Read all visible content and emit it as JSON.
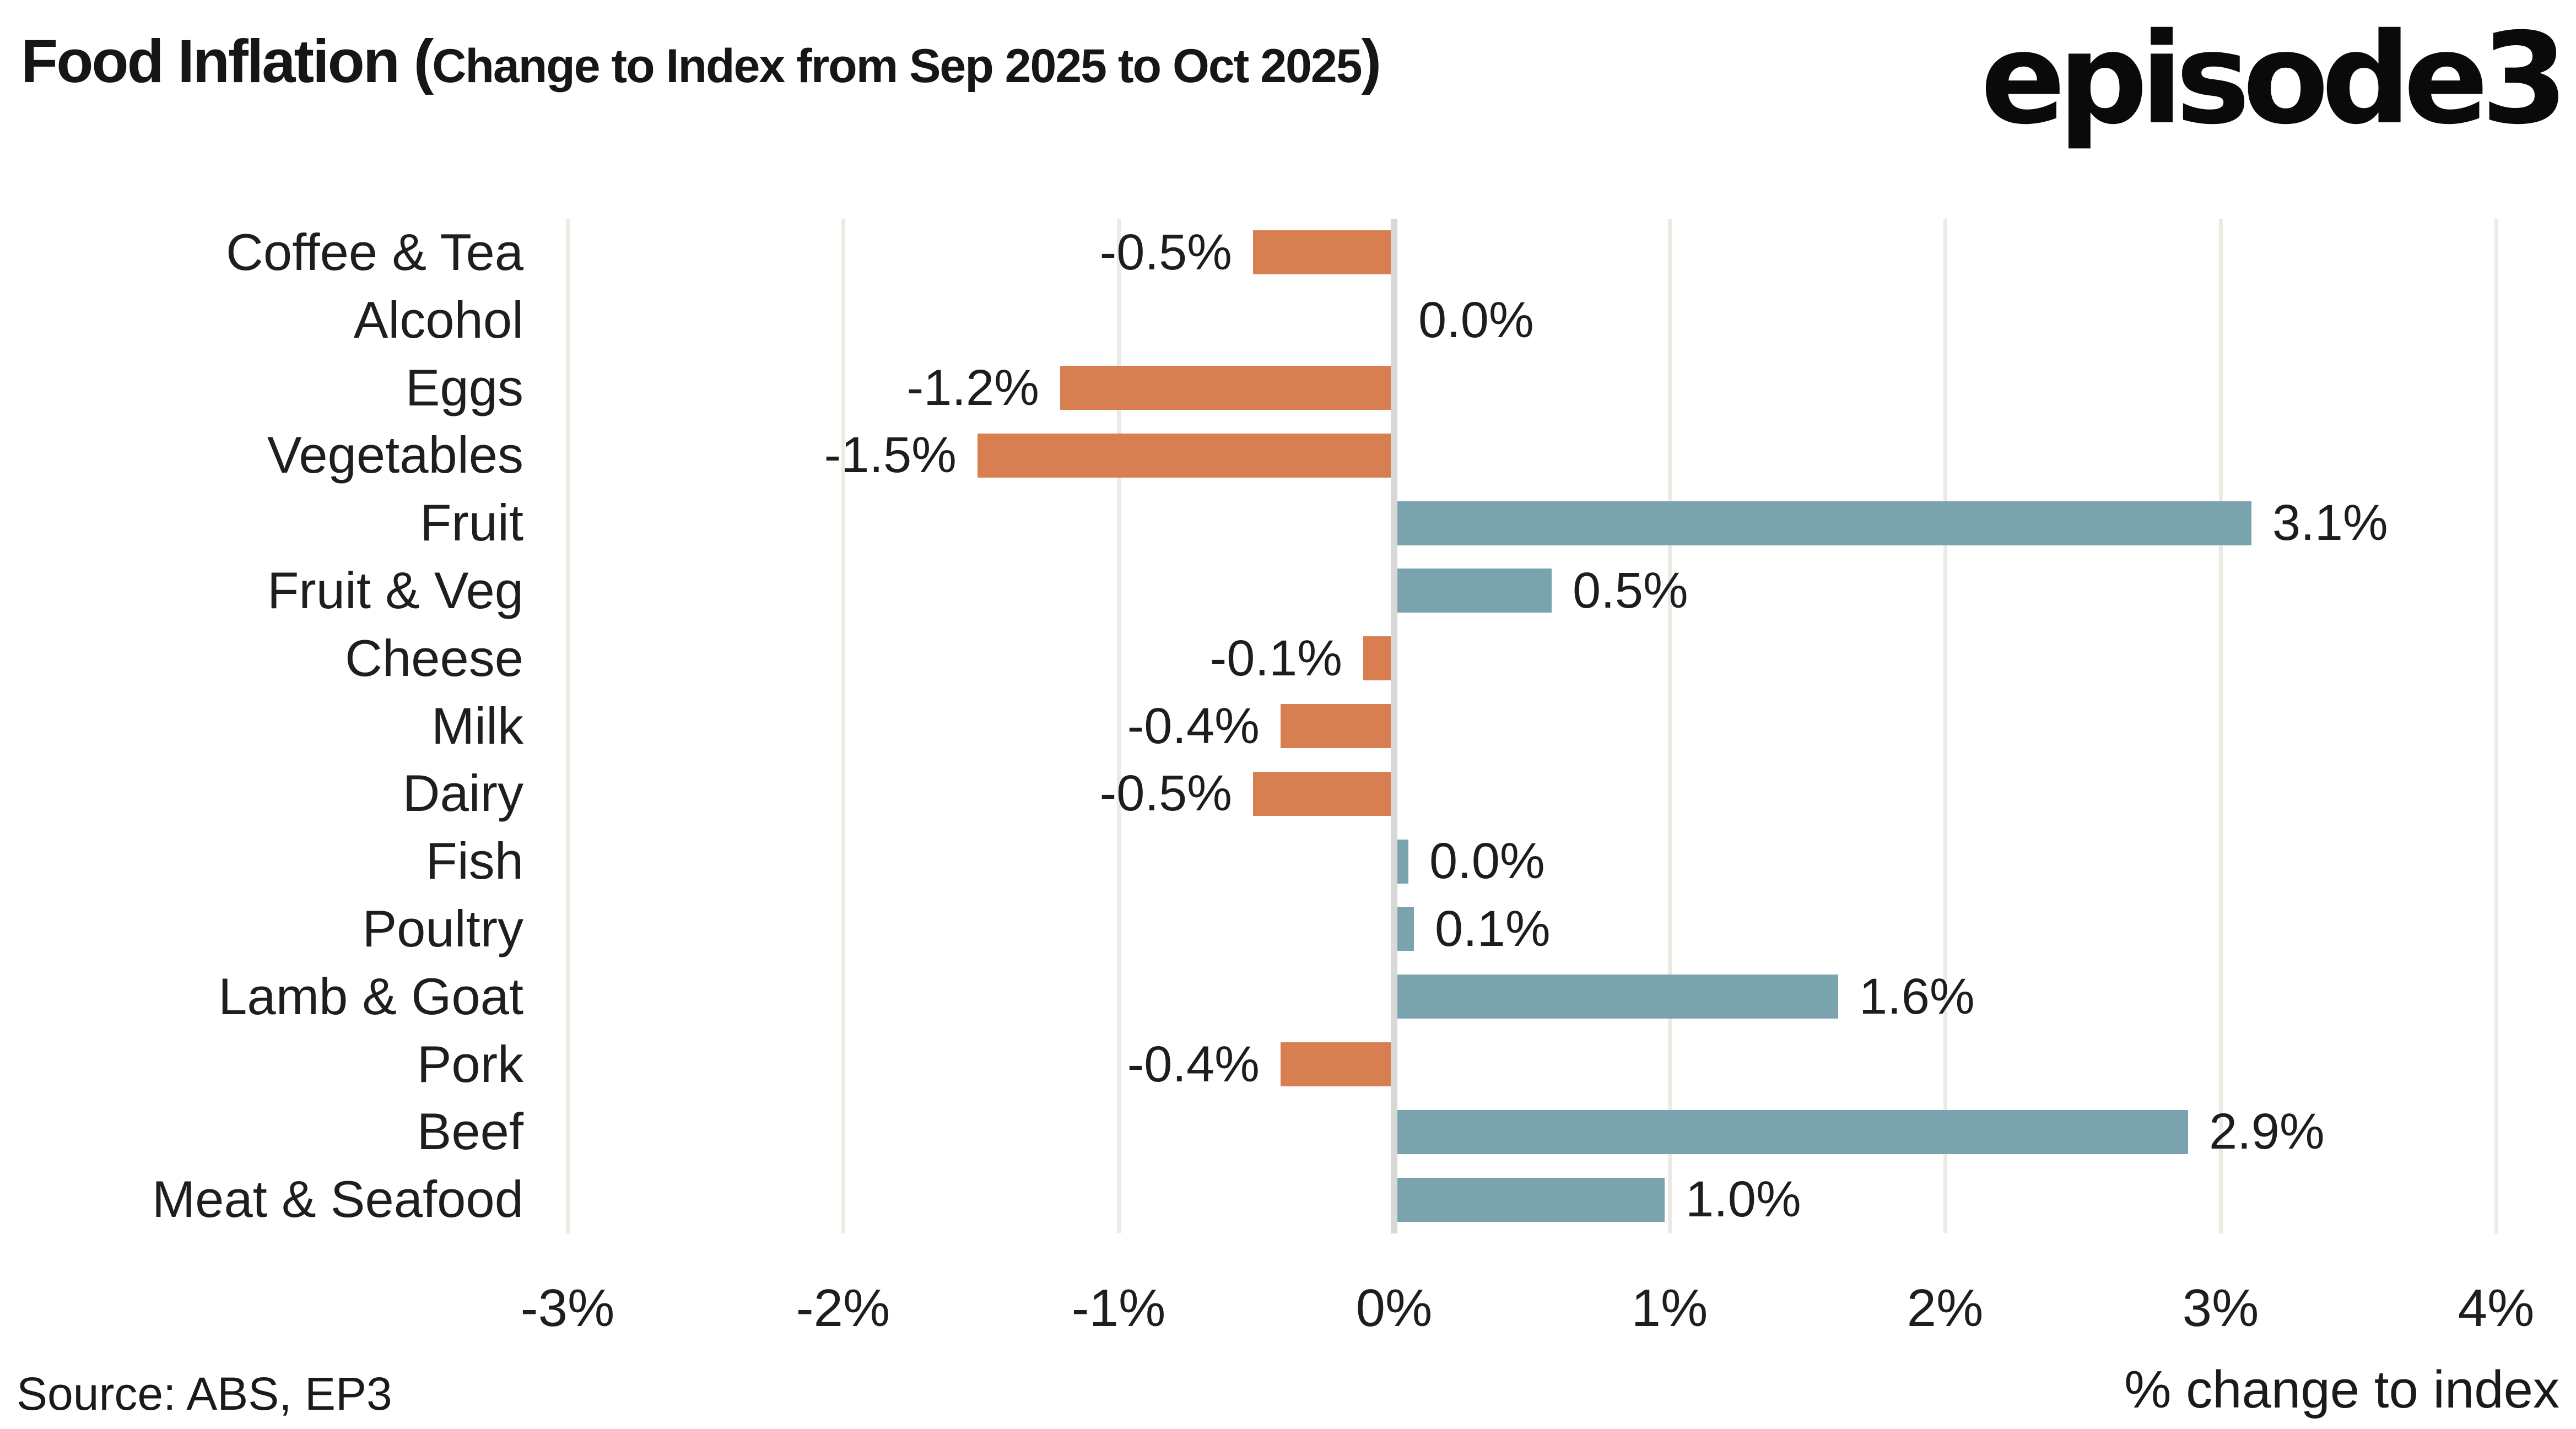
{
  "header": {
    "title_main": "Food Inflation (",
    "title_sub": "Change to Index from Sep 2025 to Oct 2025",
    "title_close": ")",
    "logo_text": "episode3"
  },
  "footer": {
    "source": "Source: ABS, EP3",
    "axis_caption": "% change to index"
  },
  "chart_data": {
    "type": "bar",
    "orientation": "horizontal",
    "title": "Food Inflation (Change to Index from Sep 2025 to Oct 2025)",
    "xlabel": "% change to index",
    "categories": [
      "Coffee & Tea",
      "Alcohol",
      "Eggs",
      "Vegetables",
      "Fruit",
      "Fruit & Veg",
      "Cheese",
      "Milk",
      "Dairy",
      "Fish",
      "Poultry",
      "Lamb & Goat",
      "Pork",
      "Beef",
      "Meat & Seafood"
    ],
    "values": [
      -0.5,
      0.0,
      -1.2,
      -1.5,
      3.1,
      0.5,
      -0.1,
      -0.4,
      -0.5,
      0.0,
      0.1,
      1.6,
      -0.4,
      2.9,
      1.0
    ],
    "labels": [
      "-0.5%",
      "0.0%",
      "-1.2%",
      "-1.5%",
      "3.1%",
      "0.5%",
      "-0.1%",
      "-0.4%",
      "-0.5%",
      "0.0%",
      "0.1%",
      "1.6%",
      "-0.4%",
      "2.9%",
      "1.0%"
    ],
    "bar_extents": [
      -0.5,
      0,
      -1.2,
      -1.5,
      3.1,
      0.56,
      -0.1,
      -0.4,
      -0.5,
      0.04,
      0.06,
      1.6,
      -0.4,
      2.87,
      0.97
    ],
    "xlim": [
      -3.02,
      4.06
    ],
    "xticks": [
      -3,
      -2,
      -1,
      0,
      1,
      2,
      3,
      4
    ],
    "xtick_labels": [
      "-3%",
      "-2%",
      "-1%",
      "0%",
      "1%",
      "2%",
      "3%",
      "4%"
    ],
    "grid": true,
    "legend": false,
    "colors": {
      "positive": "#79a4ae",
      "negative": "#d77f50",
      "gridline": "#eceae2",
      "zero_line": "#d8d8d6",
      "text": "#1d1d1d"
    }
  }
}
